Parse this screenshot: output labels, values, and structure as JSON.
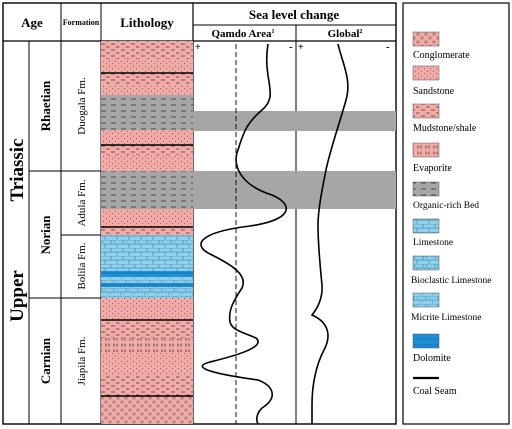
{
  "header": {
    "age": "Age",
    "formation": "Formation",
    "lithology": "Lithology",
    "sea_level": "Sea level change",
    "qamdo": "Qamdo Area",
    "qamdo_sup": "1",
    "global": "Global",
    "global_sup": "2",
    "plus": "+",
    "minus": "-"
  },
  "ages": {
    "upper": "Upper",
    "triassic": "Triassic",
    "rhaetian": "Rhaetian",
    "norian": "Norian",
    "carnian": "Carnian"
  },
  "formations": {
    "duogala": "Duogala Fm.",
    "adula": "Adula Fm.",
    "bolila": "Bolila Fm.",
    "jiapila": "Jiapila Fm."
  },
  "legend": [
    {
      "label": "Conglomerate",
      "pattern": "conglomerate"
    },
    {
      "label": "Sandstone",
      "pattern": "sandstone"
    },
    {
      "label": "Mudstone/shale",
      "pattern": "mudstone"
    },
    {
      "label": "Evaporite",
      "pattern": "evaporite"
    },
    {
      "label": "Organic-rich Bed",
      "pattern": "organic"
    },
    {
      "label": "Limestone",
      "pattern": "limestone"
    },
    {
      "label": "Bioclastic Limestone",
      "pattern": "bioclastic"
    },
    {
      "label": "Micrite Limestone",
      "pattern": "micrite"
    },
    {
      "label": "Dolomite",
      "pattern": "dolomite"
    },
    {
      "label": "Coal Seam",
      "pattern": "coal"
    }
  ],
  "colors": {
    "pink": "#f4aaa6",
    "gray": "#a6a6a6",
    "blue": "#8fd1ec",
    "dolomite": "#1c8fd6"
  }
}
